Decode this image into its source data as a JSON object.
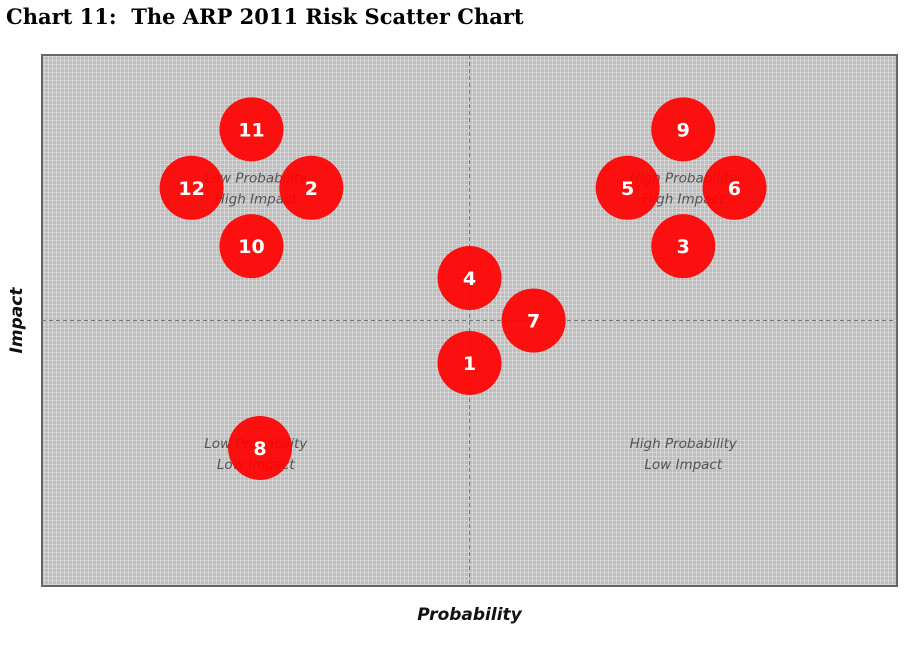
{
  "chart_data": {
    "type": "scatter",
    "title": "Chart 11:  The ARP 2011 Risk Scatter Chart",
    "xlabel": "Probability",
    "ylabel": "Impact",
    "xlim": [
      0,
      100
    ],
    "ylim": [
      0,
      100
    ],
    "grid": true,
    "point_color": "#ff0000",
    "quadrant_labels": [
      {
        "lines": [
          "Low Probability",
          "High Impact"
        ],
        "x": 25,
        "y": 75
      },
      {
        "lines": [
          "High Probability",
          "High Impact"
        ],
        "x": 75,
        "y": 75
      },
      {
        "lines": [
          "Low Probability",
          "Low Impact"
        ],
        "x": 25,
        "y": 25
      },
      {
        "lines": [
          "High Probability",
          "Low Impact"
        ],
        "x": 75,
        "y": 25
      }
    ],
    "points": [
      {
        "label": "1",
        "x": 50,
        "y": 42
      },
      {
        "label": "2",
        "x": 31.5,
        "y": 75
      },
      {
        "label": "3",
        "x": 75,
        "y": 64
      },
      {
        "label": "4",
        "x": 50,
        "y": 58
      },
      {
        "label": "5",
        "x": 68.5,
        "y": 75
      },
      {
        "label": "6",
        "x": 81,
        "y": 75
      },
      {
        "label": "7",
        "x": 57.5,
        "y": 50
      },
      {
        "label": "8",
        "x": 25.5,
        "y": 26
      },
      {
        "label": "9",
        "x": 75,
        "y": 86
      },
      {
        "label": "10",
        "x": 24.5,
        "y": 64
      },
      {
        "label": "11",
        "x": 24.5,
        "y": 86
      },
      {
        "label": "12",
        "x": 17.5,
        "y": 75
      }
    ]
  }
}
